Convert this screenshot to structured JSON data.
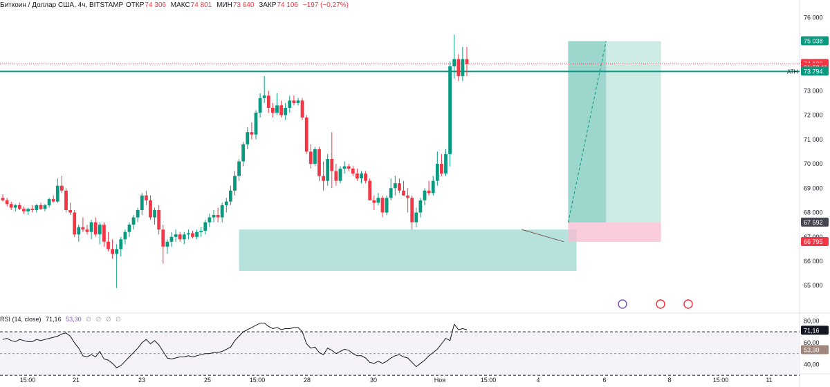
{
  "header": {
    "symbol": "Биткоин / Доллар США, 4ч, BITSTAMP",
    "open_label": "ОТКР",
    "open": "74 306",
    "high_label": "МАКС",
    "high": "74 801",
    "low_label": "МИН",
    "low": "73 640",
    "close_label": "ЗАКР",
    "close": "74 106",
    "change": "−197 (−0,27%)"
  },
  "rsi_header": {
    "label": "RSI (14, close)",
    "value1": "71,16",
    "value2": "53,30",
    "placeholders": "∅ ∅ ∅ ∅"
  },
  "chart_data": {
    "type": "candlestick",
    "price_axis": {
      "ticks": [
        65000,
        66000,
        67000,
        68000,
        69000,
        70000,
        71000,
        72000,
        73000,
        74000,
        75000,
        76000
      ],
      "tick_labels": [
        "65 000",
        "66 000",
        "67 000",
        "68 000",
        "69 000",
        "70 000",
        "71 000",
        "72 000",
        "73 000",
        "74 000",
        "75 000",
        "76 000"
      ],
      "range": [
        63900,
        76300
      ]
    },
    "time_axis": {
      "labels": [
        "15:00",
        "21",
        "23",
        "25",
        "15:00",
        "28",
        "30",
        "Ноя",
        "15:00",
        "4",
        "6",
        "8",
        "15:00",
        "11"
      ]
    },
    "price_labels": [
      {
        "text": "75 038",
        "value": 75038,
        "color": "#089981"
      },
      {
        "text": "74 106",
        "value": 74106,
        "color": "#f23645"
      },
      {
        "text": "01:58:11",
        "value": 73950,
        "color": "#f23645"
      },
      {
        "text": "73 794",
        "value": 73794,
        "color": "#089981"
      },
      {
        "text": "67 592",
        "value": 67592,
        "color": "#434651"
      },
      {
        "text": "66 795",
        "value": 66795,
        "color": "#f23645"
      }
    ],
    "ath": {
      "label": "ATH",
      "value": 73794,
      "color": "#089981"
    },
    "last_price": 74106,
    "colors": {
      "up": "#089981",
      "down": "#f23645",
      "zone": "#b2dfdb",
      "target": "#089981",
      "stop": "#f8bbd0"
    },
    "candles": [
      [
        68600,
        68750,
        68450,
        68500
      ],
      [
        68500,
        68600,
        68250,
        68350
      ],
      [
        68350,
        68450,
        68100,
        68200
      ],
      [
        68200,
        68350,
        68050,
        68300
      ],
      [
        68300,
        68400,
        68100,
        68150
      ],
      [
        68150,
        68250,
        67950,
        68050
      ],
      [
        68050,
        68200,
        67900,
        68150
      ],
      [
        68150,
        68300,
        68000,
        68100
      ],
      [
        68100,
        68350,
        68000,
        68300
      ],
      [
        68300,
        68400,
        68100,
        68150
      ],
      [
        68150,
        68350,
        68050,
        68300
      ],
      [
        68300,
        68600,
        68200,
        68550
      ],
      [
        68550,
        68700,
        68400,
        68450
      ],
      [
        68450,
        69400,
        68400,
        69100
      ],
      [
        69100,
        69500,
        68800,
        68900
      ],
      [
        68900,
        69000,
        68000,
        68100
      ],
      [
        68100,
        68400,
        67900,
        68000
      ],
      [
        68000,
        68100,
        67000,
        67100
      ],
      [
        67100,
        67500,
        66800,
        67400
      ],
      [
        67400,
        67800,
        67200,
        67300
      ],
      [
        67300,
        67500,
        67100,
        67200
      ],
      [
        67200,
        67700,
        66900,
        67600
      ],
      [
        67600,
        67800,
        67000,
        67100
      ],
      [
        67100,
        67600,
        66700,
        67500
      ],
      [
        67500,
        67600,
        66600,
        66800
      ],
      [
        66800,
        67200,
        66400,
        66500
      ],
      [
        66500,
        66900,
        66100,
        66300
      ],
      [
        66300,
        66700,
        64900,
        66500
      ],
      [
        66500,
        67000,
        66200,
        66900
      ],
      [
        66900,
        67300,
        66700,
        67200
      ],
      [
        67200,
        67600,
        67000,
        67500
      ],
      [
        67500,
        67900,
        67300,
        67800
      ],
      [
        67800,
        68200,
        67600,
        68100
      ],
      [
        68100,
        68800,
        67900,
        68700
      ],
      [
        68700,
        68900,
        68300,
        68500
      ],
      [
        68500,
        68700,
        67700,
        67800
      ],
      [
        67800,
        68200,
        67500,
        68100
      ],
      [
        68100,
        68300,
        67100,
        67300
      ],
      [
        67300,
        67500,
        65900,
        66600
      ],
      [
        66600,
        66900,
        66300,
        66800
      ],
      [
        66800,
        67200,
        66600,
        67000
      ],
      [
        67000,
        67300,
        66800,
        67100
      ],
      [
        67100,
        67200,
        66800,
        66900
      ],
      [
        66900,
        67200,
        66700,
        67100
      ],
      [
        67100,
        67300,
        66900,
        67150
      ],
      [
        67150,
        67250,
        66950,
        67000
      ],
      [
        67000,
        67300,
        66900,
        67200
      ],
      [
        67200,
        67400,
        67000,
        67250
      ],
      [
        67250,
        67700,
        67100,
        67600
      ],
      [
        67600,
        67950,
        67400,
        67800
      ],
      [
        67800,
        68100,
        67600,
        67900
      ],
      [
        67900,
        68200,
        67600,
        67800
      ],
      [
        67800,
        68400,
        67600,
        68300
      ],
      [
        68300,
        68600,
        68000,
        68450
      ],
      [
        68450,
        69100,
        68300,
        68900
      ],
      [
        68900,
        69700,
        68700,
        69500
      ],
      [
        69500,
        70200,
        69300,
        70100
      ],
      [
        70100,
        70900,
        69900,
        70800
      ],
      [
        70800,
        71500,
        70600,
        71300
      ],
      [
        71300,
        71700,
        71000,
        71200
      ],
      [
        71200,
        72200,
        71000,
        72100
      ],
      [
        72100,
        72900,
        71900,
        72700
      ],
      [
        72700,
        73600,
        72500,
        72800
      ],
      [
        72800,
        73000,
        72100,
        72300
      ],
      [
        72300,
        72500,
        71900,
        72100
      ],
      [
        72100,
        72900,
        72000,
        72400
      ],
      [
        72400,
        72600,
        71900,
        72000
      ],
      [
        72000,
        72500,
        71800,
        72300
      ],
      [
        72300,
        72800,
        72100,
        72600
      ],
      [
        72600,
        72800,
        72400,
        72500
      ],
      [
        72500,
        72700,
        72400,
        72600
      ],
      [
        72600,
        72700,
        71800,
        71900
      ],
      [
        71900,
        72000,
        70400,
        70500
      ],
      [
        70500,
        70800,
        69800,
        70000
      ],
      [
        70000,
        70700,
        69900,
        70600
      ],
      [
        70600,
        70700,
        69300,
        69500
      ],
      [
        69500,
        70100,
        68900,
        69300
      ],
      [
        69300,
        70400,
        69100,
        70200
      ],
      [
        70200,
        71300,
        69000,
        69700
      ],
      [
        69700,
        70000,
        69100,
        69300
      ],
      [
        69300,
        69900,
        69200,
        69800
      ],
      [
        69800,
        70100,
        69600,
        69900
      ],
      [
        69900,
        70000,
        69700,
        69800
      ],
      [
        69800,
        69900,
        69500,
        69600
      ],
      [
        69600,
        69800,
        69300,
        69400
      ],
      [
        69400,
        69700,
        69200,
        69600
      ],
      [
        69600,
        69700,
        69200,
        69300
      ],
      [
        69300,
        69400,
        68500,
        68500
      ],
      [
        68500,
        68700,
        68100,
        68400
      ],
      [
        68400,
        68800,
        68300,
        68600
      ],
      [
        68600,
        68700,
        67800,
        68000
      ],
      [
        68000,
        68700,
        67900,
        68600
      ],
      [
        68600,
        69400,
        68500,
        69000
      ],
      [
        69000,
        69500,
        68700,
        69200
      ],
      [
        69200,
        69400,
        68800,
        68900
      ],
      [
        68900,
        69300,
        68700,
        68700
      ],
      [
        68700,
        69000,
        68000,
        68600
      ],
      [
        68600,
        68700,
        67300,
        67600
      ],
      [
        67600,
        68200,
        67400,
        68000
      ],
      [
        68000,
        68600,
        67800,
        68500
      ],
      [
        68500,
        69000,
        68300,
        68900
      ],
      [
        68900,
        69300,
        68700,
        68800
      ],
      [
        68800,
        69500,
        68700,
        69300
      ],
      [
        69300,
        70500,
        69100,
        70000
      ],
      [
        70000,
        70400,
        69500,
        69600
      ],
      [
        69600,
        70600,
        69500,
        70400
      ],
      [
        70400,
        74200,
        69900,
        74000
      ],
      [
        74000,
        75300,
        73500,
        74300
      ],
      [
        74300,
        74500,
        73400,
        73600
      ],
      [
        73600,
        74800,
        73400,
        74300
      ],
      [
        74300,
        74800,
        73600,
        74100
      ]
    ],
    "rsi": {
      "ticks": [
        40,
        60,
        80
      ],
      "tick_labels": [
        "40,00",
        "60,00",
        "80,00"
      ],
      "range": [
        32,
        86
      ],
      "overbought": 70,
      "oversold": 30,
      "label_values": [
        {
          "text": "71,16",
          "value": 71.16,
          "color": "#131722"
        },
        {
          "text": "53,30",
          "value": 53.3,
          "color": "#a1887f"
        }
      ],
      "series": [
        [
          63,
          64,
          62,
          61,
          63,
          62,
          61,
          61,
          63,
          62,
          63,
          64,
          65,
          66,
          68,
          69,
          66,
          60,
          55,
          48,
          47,
          49,
          47,
          52,
          45,
          44,
          41,
          37,
          39,
          43,
          47,
          51,
          55,
          60,
          63,
          59,
          62,
          58,
          52,
          46,
          45,
          46,
          47,
          47,
          48,
          47,
          48,
          49,
          50,
          50,
          51,
          51,
          52,
          54,
          56,
          62,
          66,
          70,
          72,
          74,
          76,
          78,
          78,
          75,
          73,
          74,
          72,
          73,
          73,
          74,
          74,
          70,
          59,
          55,
          56,
          51,
          49,
          55,
          53,
          50,
          52,
          54,
          53,
          50,
          48,
          48,
          46,
          42,
          41,
          43,
          41,
          43,
          46,
          48,
          49,
          47,
          46,
          42,
          38,
          41,
          44,
          48,
          51,
          54,
          59,
          64,
          62,
          77,
          72,
          73,
          72
        ]
      ]
    }
  }
}
